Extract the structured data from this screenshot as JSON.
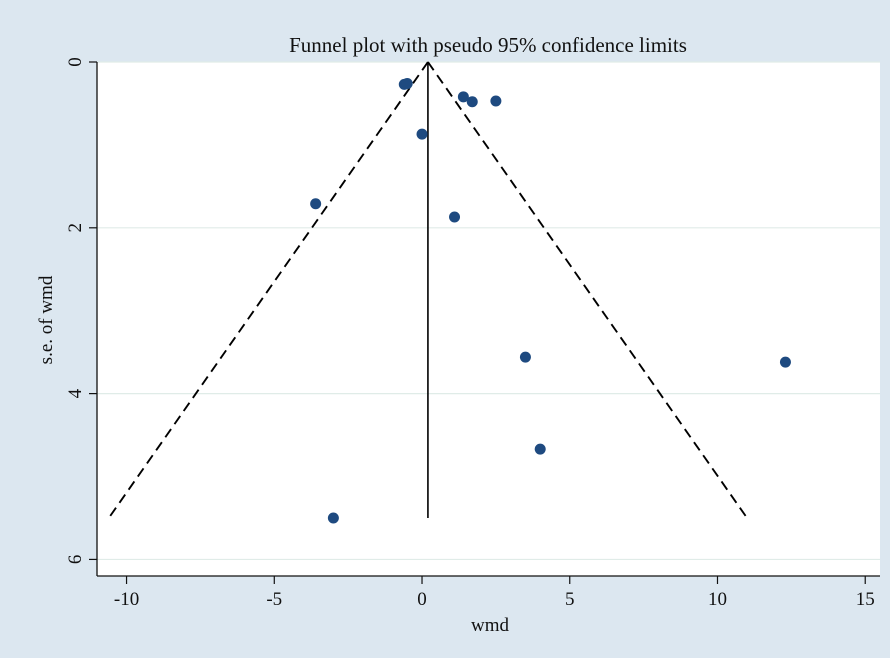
{
  "chart_data": {
    "type": "scatter",
    "title": "Funnel plot with pseudo 95% confidence limits",
    "xlabel": "wmd",
    "ylabel": "s.e. of wmd",
    "xlim": [
      -11,
      15.5
    ],
    "ylim": [
      0,
      6.2
    ],
    "y_reversed": true,
    "x_ticks": [
      -10,
      -5,
      0,
      5,
      10,
      15
    ],
    "y_ticks": [
      0,
      2,
      4,
      6
    ],
    "gridlines": "horizontal",
    "background_color": "#dce7f0",
    "plot_area_color": "#ffffff",
    "grid_color": "#e0ece8",
    "marker_color": "#1e4a80",
    "points": [
      {
        "x": -0.6,
        "y": 0.27
      },
      {
        "x": -0.5,
        "y": 0.26
      },
      {
        "x": 1.4,
        "y": 0.42
      },
      {
        "x": 1.7,
        "y": 0.48
      },
      {
        "x": 2.5,
        "y": 0.47
      },
      {
        "x": 0.0,
        "y": 0.87
      },
      {
        "x": -3.6,
        "y": 1.71
      },
      {
        "x": 1.1,
        "y": 1.87
      },
      {
        "x": 3.5,
        "y": 3.56
      },
      {
        "x": 12.3,
        "y": 3.62
      },
      {
        "x": 4.0,
        "y": 4.67
      },
      {
        "x": -3.0,
        "y": 5.5
      }
    ],
    "pooled_estimate_line": {
      "x": 0.2,
      "y_from": 0,
      "y_to": 5.5,
      "style": "solid"
    },
    "confidence_limits": {
      "style": "dashed",
      "lower": [
        {
          "x": 0.2,
          "y": 0
        },
        {
          "x": -10.6,
          "y": 5.5
        }
      ],
      "upper": [
        {
          "x": 0.2,
          "y": 0
        },
        {
          "x": 11.0,
          "y": 5.5
        }
      ]
    }
  }
}
